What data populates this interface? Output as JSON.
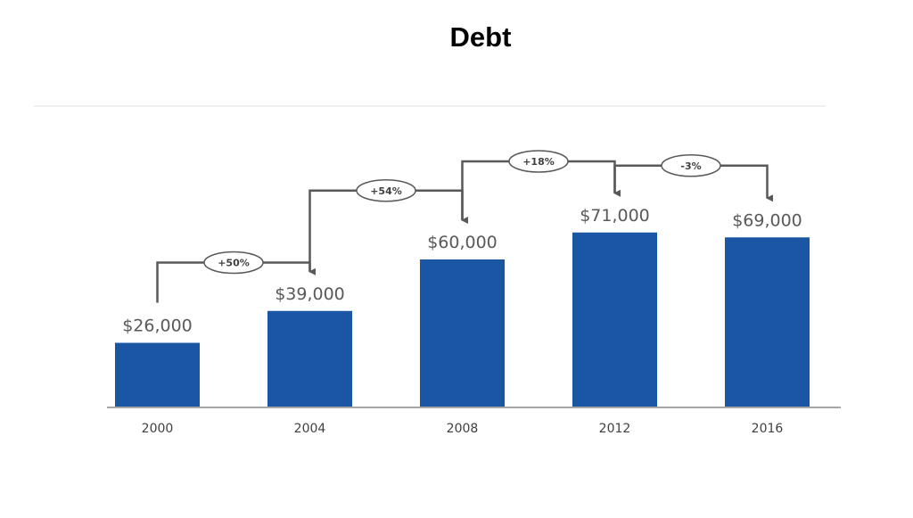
{
  "chart_data": {
    "type": "bar",
    "title": "Debt",
    "xlabel": "",
    "ylabel": "",
    "categories": [
      "2000",
      "2004",
      "2008",
      "2012",
      "2016"
    ],
    "values": [
      26000,
      39000,
      60000,
      71000,
      69000
    ],
    "value_labels": [
      "$26,000",
      "$39,000",
      "$60,000",
      "$71,000",
      "$69,000"
    ],
    "changes": [
      "+50%",
      "+54%",
      "+18%",
      "-3%"
    ],
    "ylim": [
      0,
      90000
    ],
    "grid": false,
    "legend": "none"
  },
  "colors": {
    "bar": "#1b56a4",
    "connector": "#595959",
    "axis": "#a6a6a6",
    "top_rule": "#eeeeee"
  }
}
